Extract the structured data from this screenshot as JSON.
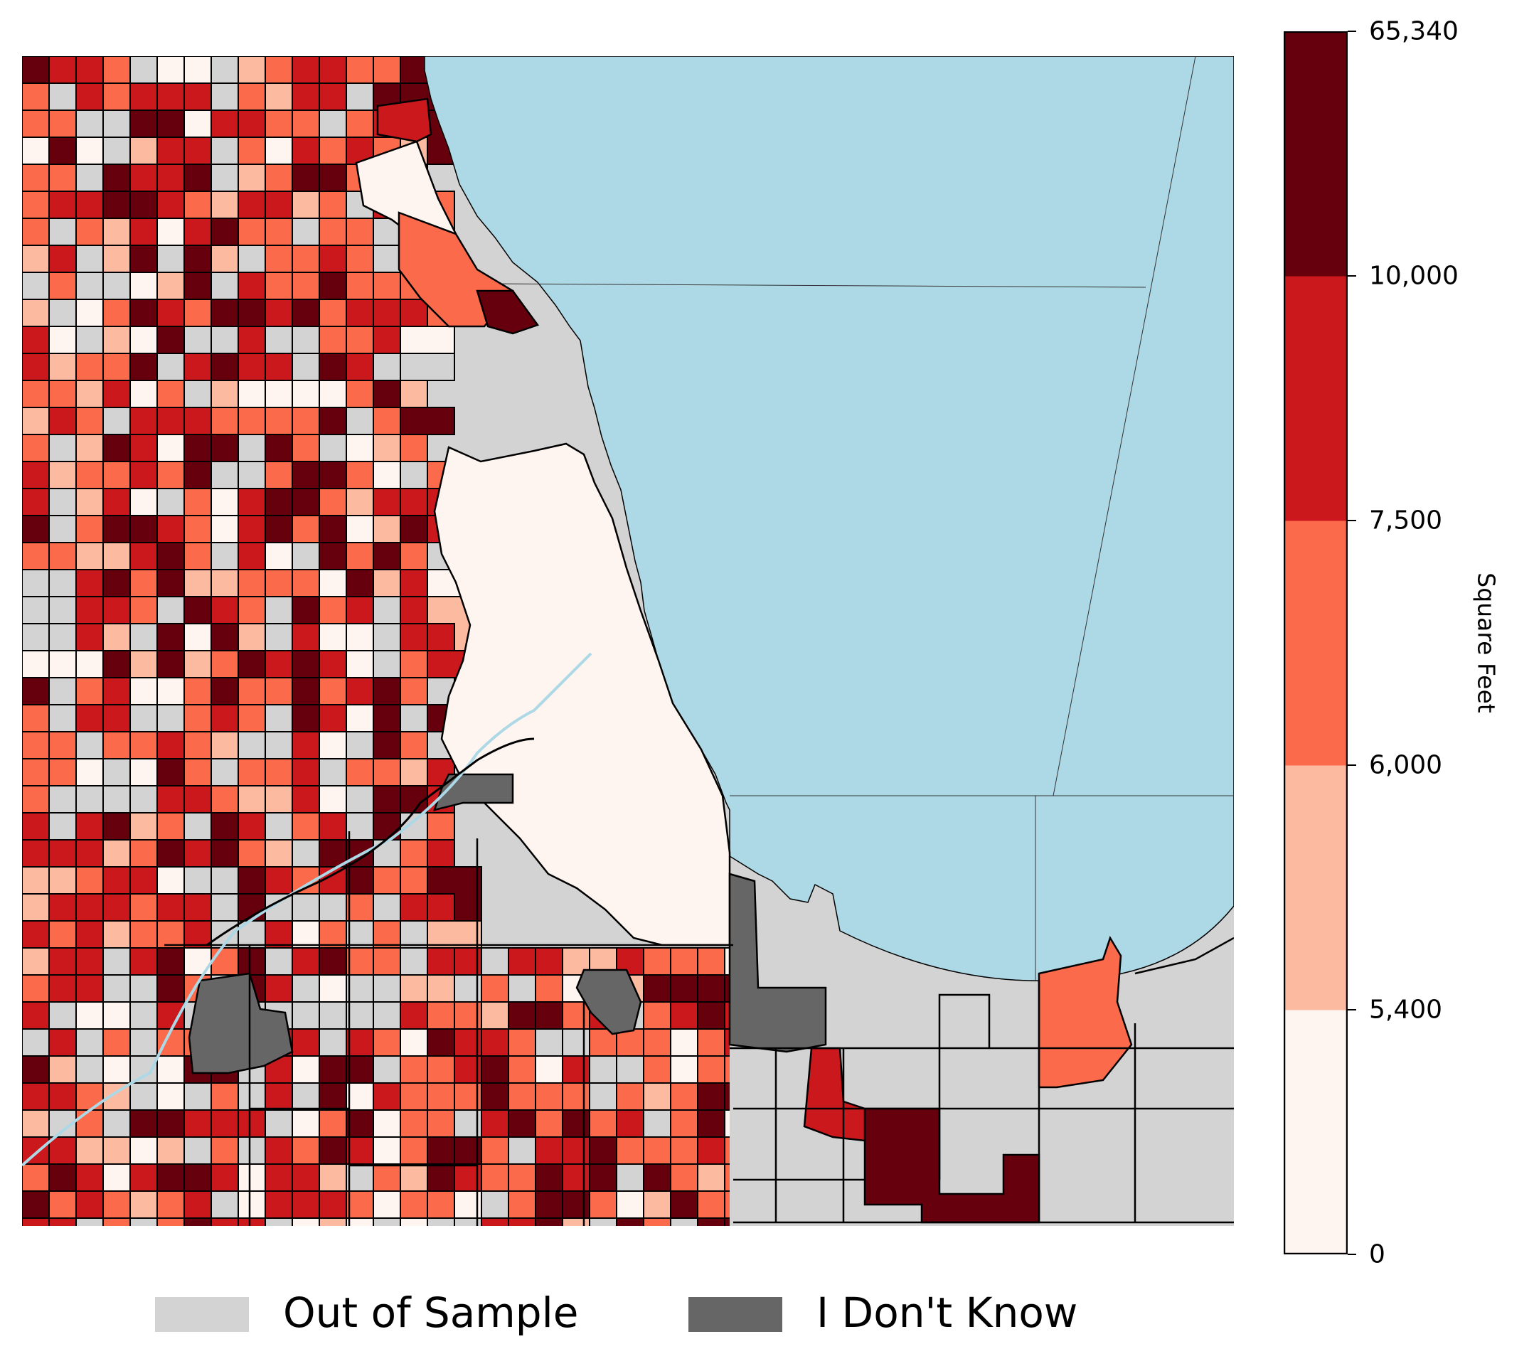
{
  "colors": {
    "lake": "#add8e6",
    "out_of_sample": "#d3d3d3",
    "dont_know": "#666666",
    "bin_colors": [
      "#fff5f0",
      "#fcbba1",
      "#fb6a4a",
      "#cb181d",
      "#67000d"
    ],
    "boundary": "#000000"
  },
  "colorbar": {
    "title": "Square Feet",
    "ticks": [
      "0",
      "5,400",
      "6,000",
      "7,500",
      "10,000",
      "65,340"
    ]
  },
  "legend": {
    "items": [
      {
        "label": "Out of Sample",
        "color": "#d3d3d3"
      },
      {
        "label": "I Don't Know",
        "color": "#666666"
      }
    ]
  }
}
